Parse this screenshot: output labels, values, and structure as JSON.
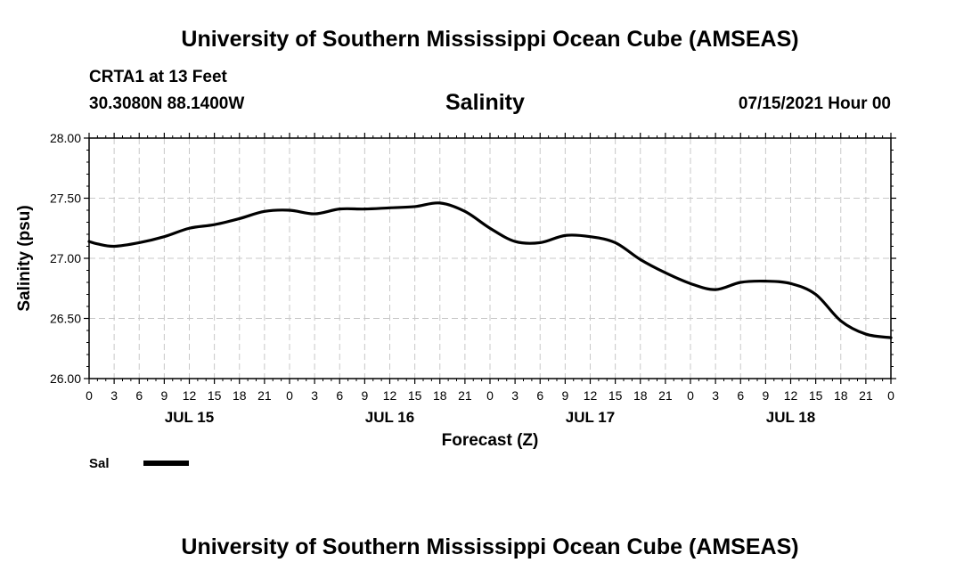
{
  "header": {
    "title": "University of Southern Mississippi Ocean Cube (AMSEAS)",
    "station": "CRTA1 at 13 Feet",
    "coords": "30.3080N  88.1400W",
    "variable": "Salinity",
    "run_time": "07/15/2021 Hour 00"
  },
  "footer": {
    "title": "University of Southern Mississippi Ocean Cube (AMSEAS)"
  },
  "chart_data": {
    "type": "line",
    "ylabel": "Salinity (psu)",
    "xlabel": "Forecast (Z)",
    "ylim": [
      26.0,
      28.0
    ],
    "yticks": [
      "26.00",
      "26.50",
      "27.00",
      "27.50",
      "28.00"
    ],
    "x_hour_range": [
      0,
      96
    ],
    "x_tick_labels": [
      "0",
      "3",
      "6",
      "9",
      "12",
      "15",
      "18",
      "21",
      "0",
      "3",
      "6",
      "9",
      "12",
      "15",
      "18",
      "21",
      "0",
      "3",
      "6",
      "9",
      "12",
      "15",
      "18",
      "21",
      "0",
      "3",
      "6",
      "9",
      "12",
      "15",
      "18",
      "21",
      "0"
    ],
    "date_labels": [
      {
        "text": "JUL 15",
        "hour": 12
      },
      {
        "text": "JUL 16",
        "hour": 36
      },
      {
        "text": "JUL 17",
        "hour": 60
      },
      {
        "text": "JUL 18",
        "hour": 84
      }
    ],
    "grid": true,
    "legend": {
      "label": "Sal",
      "position": "bottom-left"
    },
    "series": [
      {
        "name": "Sal",
        "color": "#000000",
        "x": [
          0,
          1,
          3,
          6,
          9,
          12,
          15,
          18,
          21,
          24,
          27,
          30,
          33,
          36,
          39,
          42,
          45,
          48,
          51,
          54,
          57,
          60,
          63,
          66,
          69,
          72,
          75,
          78,
          81,
          84,
          87,
          90,
          93,
          96
        ],
        "values": [
          27.14,
          27.12,
          27.1,
          27.13,
          27.18,
          27.25,
          27.28,
          27.33,
          27.39,
          27.4,
          27.37,
          27.41,
          27.41,
          27.42,
          27.43,
          27.46,
          27.39,
          27.25,
          27.14,
          27.13,
          27.19,
          27.18,
          27.13,
          26.99,
          26.88,
          26.79,
          26.74,
          26.8,
          26.81,
          26.79,
          26.7,
          26.48,
          26.37,
          26.34
        ]
      }
    ]
  }
}
